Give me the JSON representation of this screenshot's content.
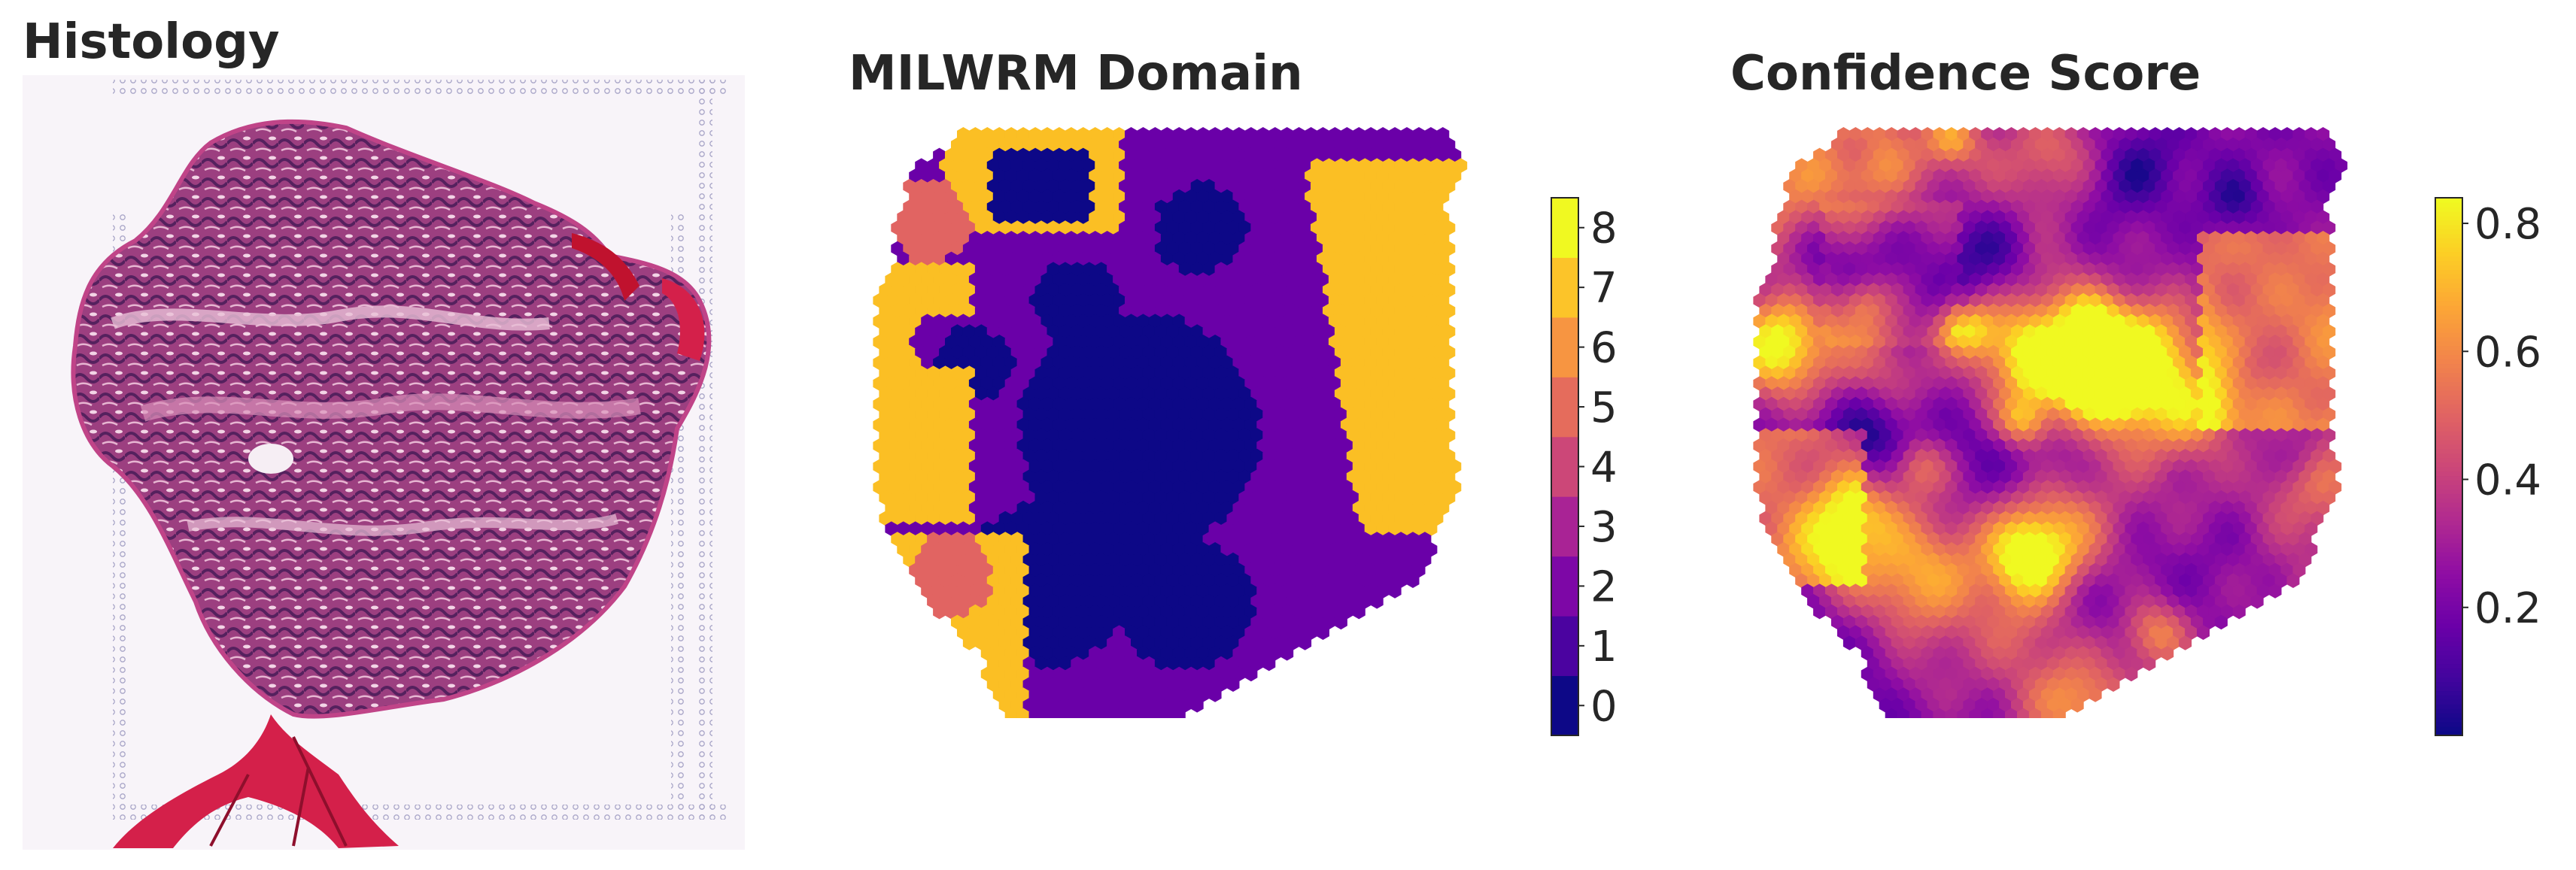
{
  "figure": {
    "panels": [
      {
        "id": "histology",
        "title": "Histology"
      },
      {
        "id": "domain",
        "title": "MILWRM Domain"
      },
      {
        "id": "confidence",
        "title": "Confidence Score"
      }
    ]
  },
  "colorbars": {
    "domain": {
      "colormap": "plasma",
      "discrete": true,
      "range": [
        -0.5,
        8.5
      ],
      "ticks": [
        "0",
        "1",
        "2",
        "3",
        "4",
        "5",
        "6",
        "7",
        "8"
      ]
    },
    "confidence": {
      "colormap": "plasma",
      "discrete": false,
      "range": [
        0.0,
        0.84
      ],
      "ticks": [
        "0.2",
        "0.4",
        "0.6",
        "0.8"
      ]
    }
  },
  "colors": {
    "domain_0": "#0d0887",
    "domain_2": "#6a00a8",
    "domain_5": "#e16462",
    "domain_7": "#fbbf24",
    "tissue_stain": "#a63a7a",
    "collagen": "#d4204a"
  }
}
